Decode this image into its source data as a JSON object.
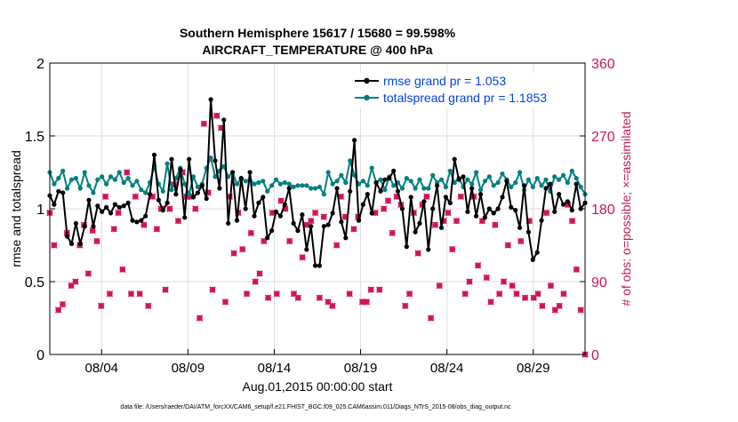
{
  "chart_data": {
    "type": "line",
    "title_line1": "Southern Hemisphere 15617 / 15680 = 99.598%",
    "title_line2": "AIRCRAFT_TEMPERATURE @ 400 hPa",
    "xlabel": "Aug.01,2015 00:00:00 start",
    "ylabel_left": "rmse and totalspread",
    "ylabel_right": "# of obs: o=possible; ×=assimilated",
    "footer": "data file: /Users/raeder/DAI/ATM_forcXX/CAM6_setup/f.e21.FHIST_BGC.f09_025.CAM6assim.011/Diags_NTrS_2015-08/obs_diag_output.nc",
    "x_range_days": [
      0,
      31
    ],
    "ylim_left": [
      0,
      2
    ],
    "ylim_right": [
      0,
      360
    ],
    "left_ticks": [
      "0",
      "0.5",
      "1",
      "1.5",
      "2"
    ],
    "right_ticks": [
      "0",
      "90",
      "180",
      "270",
      "360"
    ],
    "x_ticks": [
      {
        "day": 3,
        "label": "08/04"
      },
      {
        "day": 8,
        "label": "08/09"
      },
      {
        "day": 13,
        "label": "08/14"
      },
      {
        "day": 18,
        "label": "08/19"
      },
      {
        "day": 23,
        "label": "08/24"
      },
      {
        "day": 28,
        "label": "08/29"
      }
    ],
    "grid": true,
    "legend_position": "top-right",
    "colors": {
      "rmse": "#000000",
      "totalspread": "#00807f",
      "obs": "#d2145a",
      "right_axis": "#c8175d",
      "legend_text": "#0044dd"
    },
    "series": [
      {
        "name": "rmse grand pr = 1.053",
        "values": [
          1.09,
          1.03,
          1.12,
          1.11,
          0.81,
          0.76,
          0.9,
          0.76,
          0.88,
          1.06,
          0.88,
          1.02,
          0.98,
          1.01,
          0.97,
          1.03,
          1.01,
          1.02,
          1.04,
          0.92,
          0.91,
          0.92,
          0.95,
          1.1,
          1.37,
          1.06,
          0.99,
          1.04,
          1.34,
          1.1,
          1.27,
          0.94,
          1.34,
          1.08,
          1.11,
          1.16,
          1.07,
          1.75,
          1.33,
          1.14,
          1.61,
          0.9,
          1.25,
          0.92,
          1.21,
          1.0,
          1.25,
          0.95,
          1.04,
          1.08,
          0.8,
          0.85,
          0.98,
          0.95,
          1.03,
          1.14,
          0.9,
          0.85,
          0.96,
          0.72,
          0.88,
          0.61,
          0.61,
          0.88,
          0.89,
          0.97,
          1.14,
          0.91,
          0.8,
          1.12,
          1.47,
          0.92,
          1.03,
          1.1,
          0.97,
          1.18,
          1.12,
          1.2,
          1.21,
          1.26,
          1.12,
          1.0,
          0.74,
          1.08,
          0.84,
          0.9,
          1.05,
          0.72,
          1.0,
          1.16,
          0.87,
          1.08,
          1.04,
          1.34,
          1.2,
          1.22,
          0.98,
          1.14,
          0.95,
          1.1,
          0.94,
          1.0,
          0.97,
          1.0,
          1.08,
          1.19,
          1.01,
          0.99,
          0.87,
          1.16,
          0.84,
          0.65,
          0.7,
          0.92,
          1.14,
          1.17,
          0.98,
          1.1,
          1.03,
          1.05,
          0.99,
          1.17,
          1.0,
          1.04
        ]
      },
      {
        "name": "totalspread grand pr = 1.1853",
        "values": [
          1.25,
          1.17,
          1.21,
          1.26,
          1.14,
          1.2,
          1.21,
          1.14,
          1.25,
          1.16,
          1.11,
          1.2,
          1.22,
          1.17,
          1.22,
          1.2,
          1.25,
          1.18,
          1.21,
          1.16,
          1.19,
          1.13,
          1.11,
          1.18,
          1.29,
          1.17,
          1.12,
          1.31,
          1.13,
          1.21,
          1.28,
          1.17,
          1.1,
          1.22,
          1.15,
          1.17,
          1.28,
          1.35,
          1.22,
          1.26,
          1.29,
          1.22,
          1.25,
          1.17,
          1.21,
          1.19,
          1.2,
          1.17,
          1.18,
          1.19,
          1.12,
          1.16,
          1.2,
          1.17,
          1.18,
          1.17,
          1.15,
          1.16,
          1.16,
          1.16,
          1.14,
          1.14,
          1.15,
          1.1,
          1.25,
          1.17,
          1.19,
          1.23,
          1.18,
          1.33,
          1.23,
          1.17,
          1.19,
          1.16,
          1.28,
          1.18,
          1.2,
          1.13,
          1.22,
          1.16,
          1.18,
          1.14,
          1.21,
          1.19,
          1.14,
          1.2,
          1.14,
          1.14,
          1.23,
          1.18,
          1.2,
          1.15,
          1.26,
          1.18,
          1.21,
          1.15,
          1.2,
          1.17,
          1.25,
          1.13,
          1.19,
          1.22,
          1.16,
          1.18,
          1.24,
          1.2,
          1.15,
          1.18,
          1.25,
          1.13,
          1.2,
          1.15,
          1.21,
          1.16,
          1.2,
          1.12,
          1.22,
          1.2,
          1.23,
          1.18,
          1.26,
          1.21,
          1.15,
          1.1
        ]
      }
    ],
    "obs_counts": [
      175,
      135,
      55,
      62,
      150,
      85,
      90,
      135,
      160,
      100,
      153,
      140,
      60,
      195,
      75,
      155,
      175,
      105,
      225,
      75,
      195,
      75,
      160,
      60,
      195,
      155,
      180,
      80,
      180,
      210,
      165,
      225,
      195,
      195,
      180,
      45,
      285,
      200,
      80,
      295,
      280,
      65,
      195,
      125,
      175,
      130,
      75,
      150,
      90,
      100,
      140,
      70,
      175,
      75,
      190,
      180,
      140,
      75,
      70,
      120,
      160,
      165,
      175,
      70,
      170,
      65,
      60,
      135,
      195,
      170,
      75,
      155,
      170,
      65,
      65,
      80,
      175,
      80,
      180,
      190,
      150,
      195,
      185,
      60,
      75,
      175,
      125,
      185,
      195,
      45,
      160,
      85,
      165,
      175,
      130,
      165,
      195,
      75,
      90,
      195,
      110,
      165,
      95,
      65,
      160,
      75,
      90,
      135,
      85,
      75,
      140,
      70,
      165,
      70,
      75,
      60,
      175,
      85,
      55,
      60,
      75,
      185,
      165,
      105,
      55,
      0
    ]
  }
}
